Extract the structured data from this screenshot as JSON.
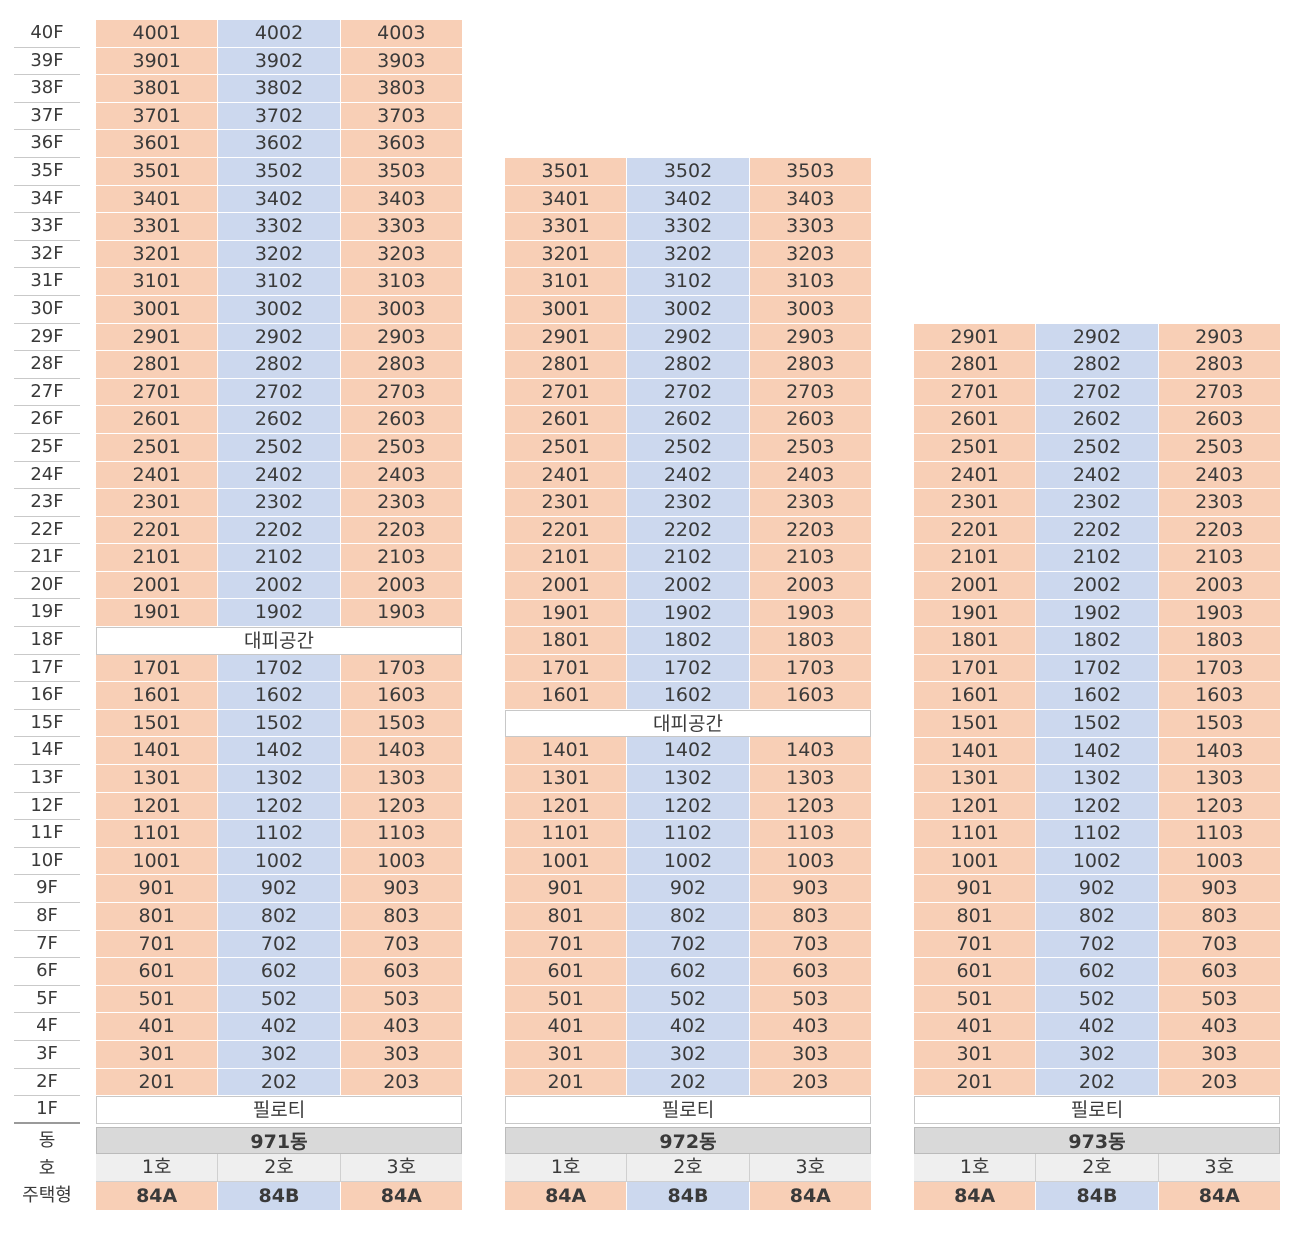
{
  "floors": [
    "40F",
    "39F",
    "38F",
    "37F",
    "36F",
    "35F",
    "34F",
    "33F",
    "32F",
    "31F",
    "30F",
    "29F",
    "28F",
    "27F",
    "26F",
    "25F",
    "24F",
    "23F",
    "22F",
    "21F",
    "20F",
    "19F",
    "18F",
    "17F",
    "16F",
    "15F",
    "14F",
    "13F",
    "12F",
    "11F",
    "10F",
    "9F",
    "8F",
    "7F",
    "6F",
    "5F",
    "4F",
    "3F",
    "2F",
    "1F"
  ],
  "summary_labels": {
    "dong": "동",
    "ho": "호",
    "type": "주택형"
  },
  "refuge_label": "대피공간",
  "piloti_label": "필로티",
  "buildings": [
    {
      "name": "971동",
      "top_floor": 40,
      "refuge_floor": 18,
      "ho": [
        "1호",
        "2호",
        "3호"
      ],
      "types": [
        "84A",
        "84B",
        "84A"
      ]
    },
    {
      "name": "972동",
      "top_floor": 35,
      "refuge_floor": 15,
      "ho": [
        "1호",
        "2호",
        "3호"
      ],
      "types": [
        "84A",
        "84B",
        "84A"
      ]
    },
    {
      "name": "973동",
      "top_floor": 29,
      "refuge_floor": null,
      "ho": [
        "1호",
        "2호",
        "3호"
      ],
      "types": [
        "84A",
        "84B",
        "84A"
      ]
    }
  ],
  "colors": {
    "orange": "#f8cfb6",
    "blue": "#ccd8ee",
    "summary_gray": "#d9d9d9",
    "ho_gray": "#efefef"
  }
}
